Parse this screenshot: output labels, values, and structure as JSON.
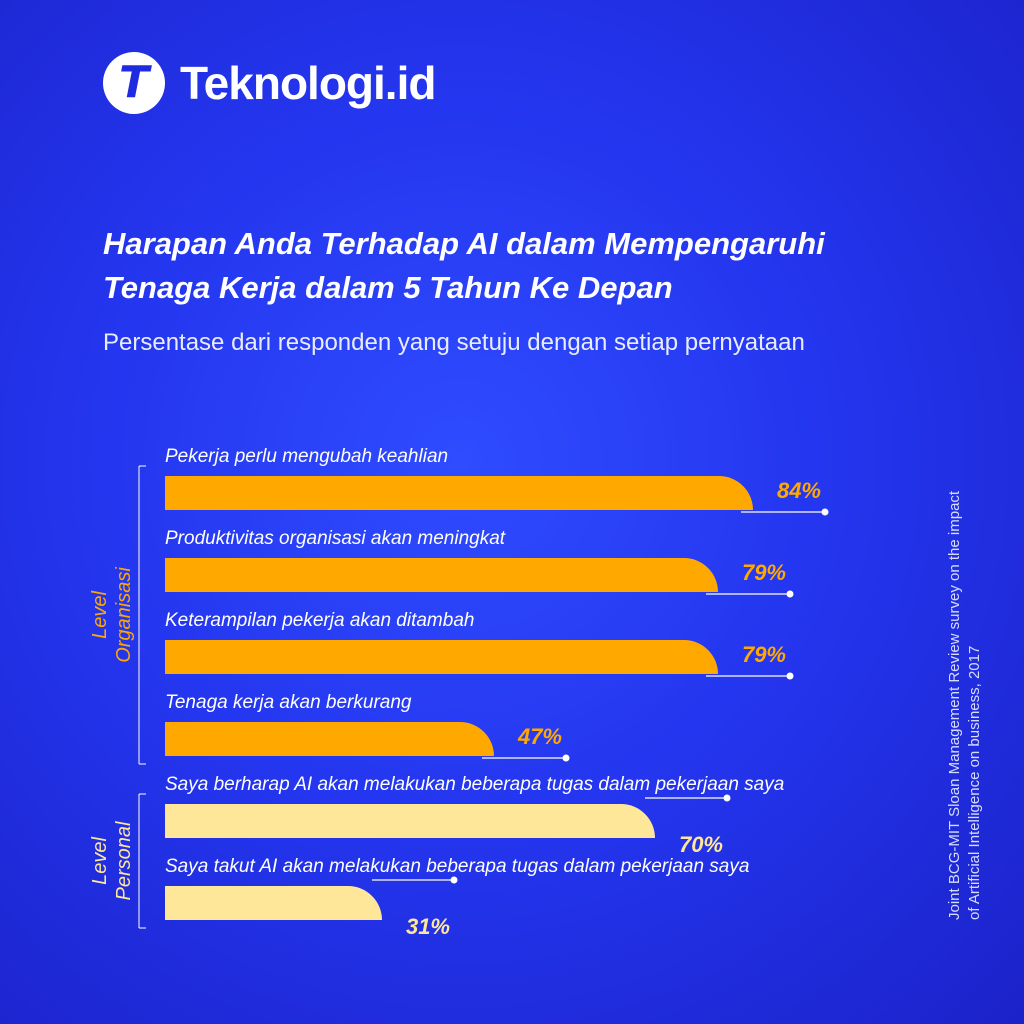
{
  "brand": {
    "logo_letter": "T",
    "name": "Teknologi.id"
  },
  "colors": {
    "background": "#2436ef",
    "org_bar": "#ffa800",
    "personal_bar": "#ffe79a",
    "org_text": "#ffa800",
    "personal_text": "#ffe79a"
  },
  "source": "Joint BCG-MIT Sloan Management Review survey on the impact of Artificial Intelligence on business, 2017",
  "chart_data": {
    "type": "bar",
    "orientation": "horizontal",
    "title_lines": [
      "Harapan Anda Terhadap AI dalam Mempengaruhi",
      "Tenaga Kerja dalam 5 Tahun Ke Depan"
    ],
    "subtitle": "Persentase dari responden yang setuju dengan setiap pernyataan",
    "unit": "%",
    "groups": [
      {
        "label_lines": [
          "Level",
          "Organisasi"
        ],
        "bars": [
          {
            "label": "Pekerja perlu mengubah keahlian",
            "value": 84
          },
          {
            "label": "Produktivitas organisasi akan meningkat",
            "value": 79
          },
          {
            "label": "Keterampilan pekerja akan ditambah",
            "value": 79
          },
          {
            "label": "Tenaga kerja akan berkurang",
            "value": 47
          }
        ]
      },
      {
        "label_lines": [
          "Level",
          "Personal"
        ],
        "bars": [
          {
            "label": "Saya berharap AI akan melakukan beberapa tugas dalam pekerjaan saya",
            "value": 70
          },
          {
            "label": "Saya takut AI akan melakukan beberapa tugas dalam pekerjaan saya",
            "value": 31
          }
        ]
      }
    ]
  }
}
